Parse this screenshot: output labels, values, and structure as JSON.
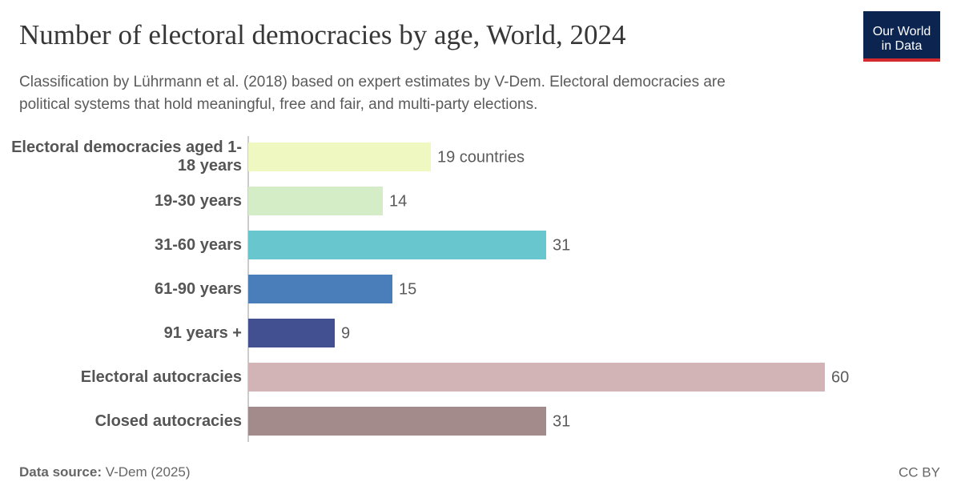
{
  "chart_data": {
    "type": "bar",
    "orientation": "horizontal",
    "title": "Number of electoral democracies by age, World, 2024",
    "subtitle": [
      "Classification by Lührmann et al. (2018) based on expert estimates by V-Dem. Electoral democracies are",
      "political systems that hold meaningful, free and fair, and multi-party elections."
    ],
    "categories": [
      "Electoral democracies aged 1-18 years",
      "19-30 years",
      "31-60 years",
      "61-90 years",
      "91 years +",
      "Electoral autocracies",
      "Closed autocracies"
    ],
    "values": [
      19,
      14,
      31,
      15,
      9,
      60,
      31
    ],
    "value_labels": [
      "19 countries",
      "14",
      "31",
      "15",
      "9",
      "60",
      "31"
    ],
    "colors": [
      "#eff8c1",
      "#d4edc6",
      "#68c6cf",
      "#4a7eba",
      "#424f90",
      "#d2b4b6",
      "#a38a8b"
    ],
    "xlim": [
      0,
      60
    ]
  },
  "logo": [
    "Our World",
    "in Data"
  ],
  "footer": {
    "source_label": "Data source:",
    "source": "V-Dem (2025)",
    "license": "CC BY"
  }
}
